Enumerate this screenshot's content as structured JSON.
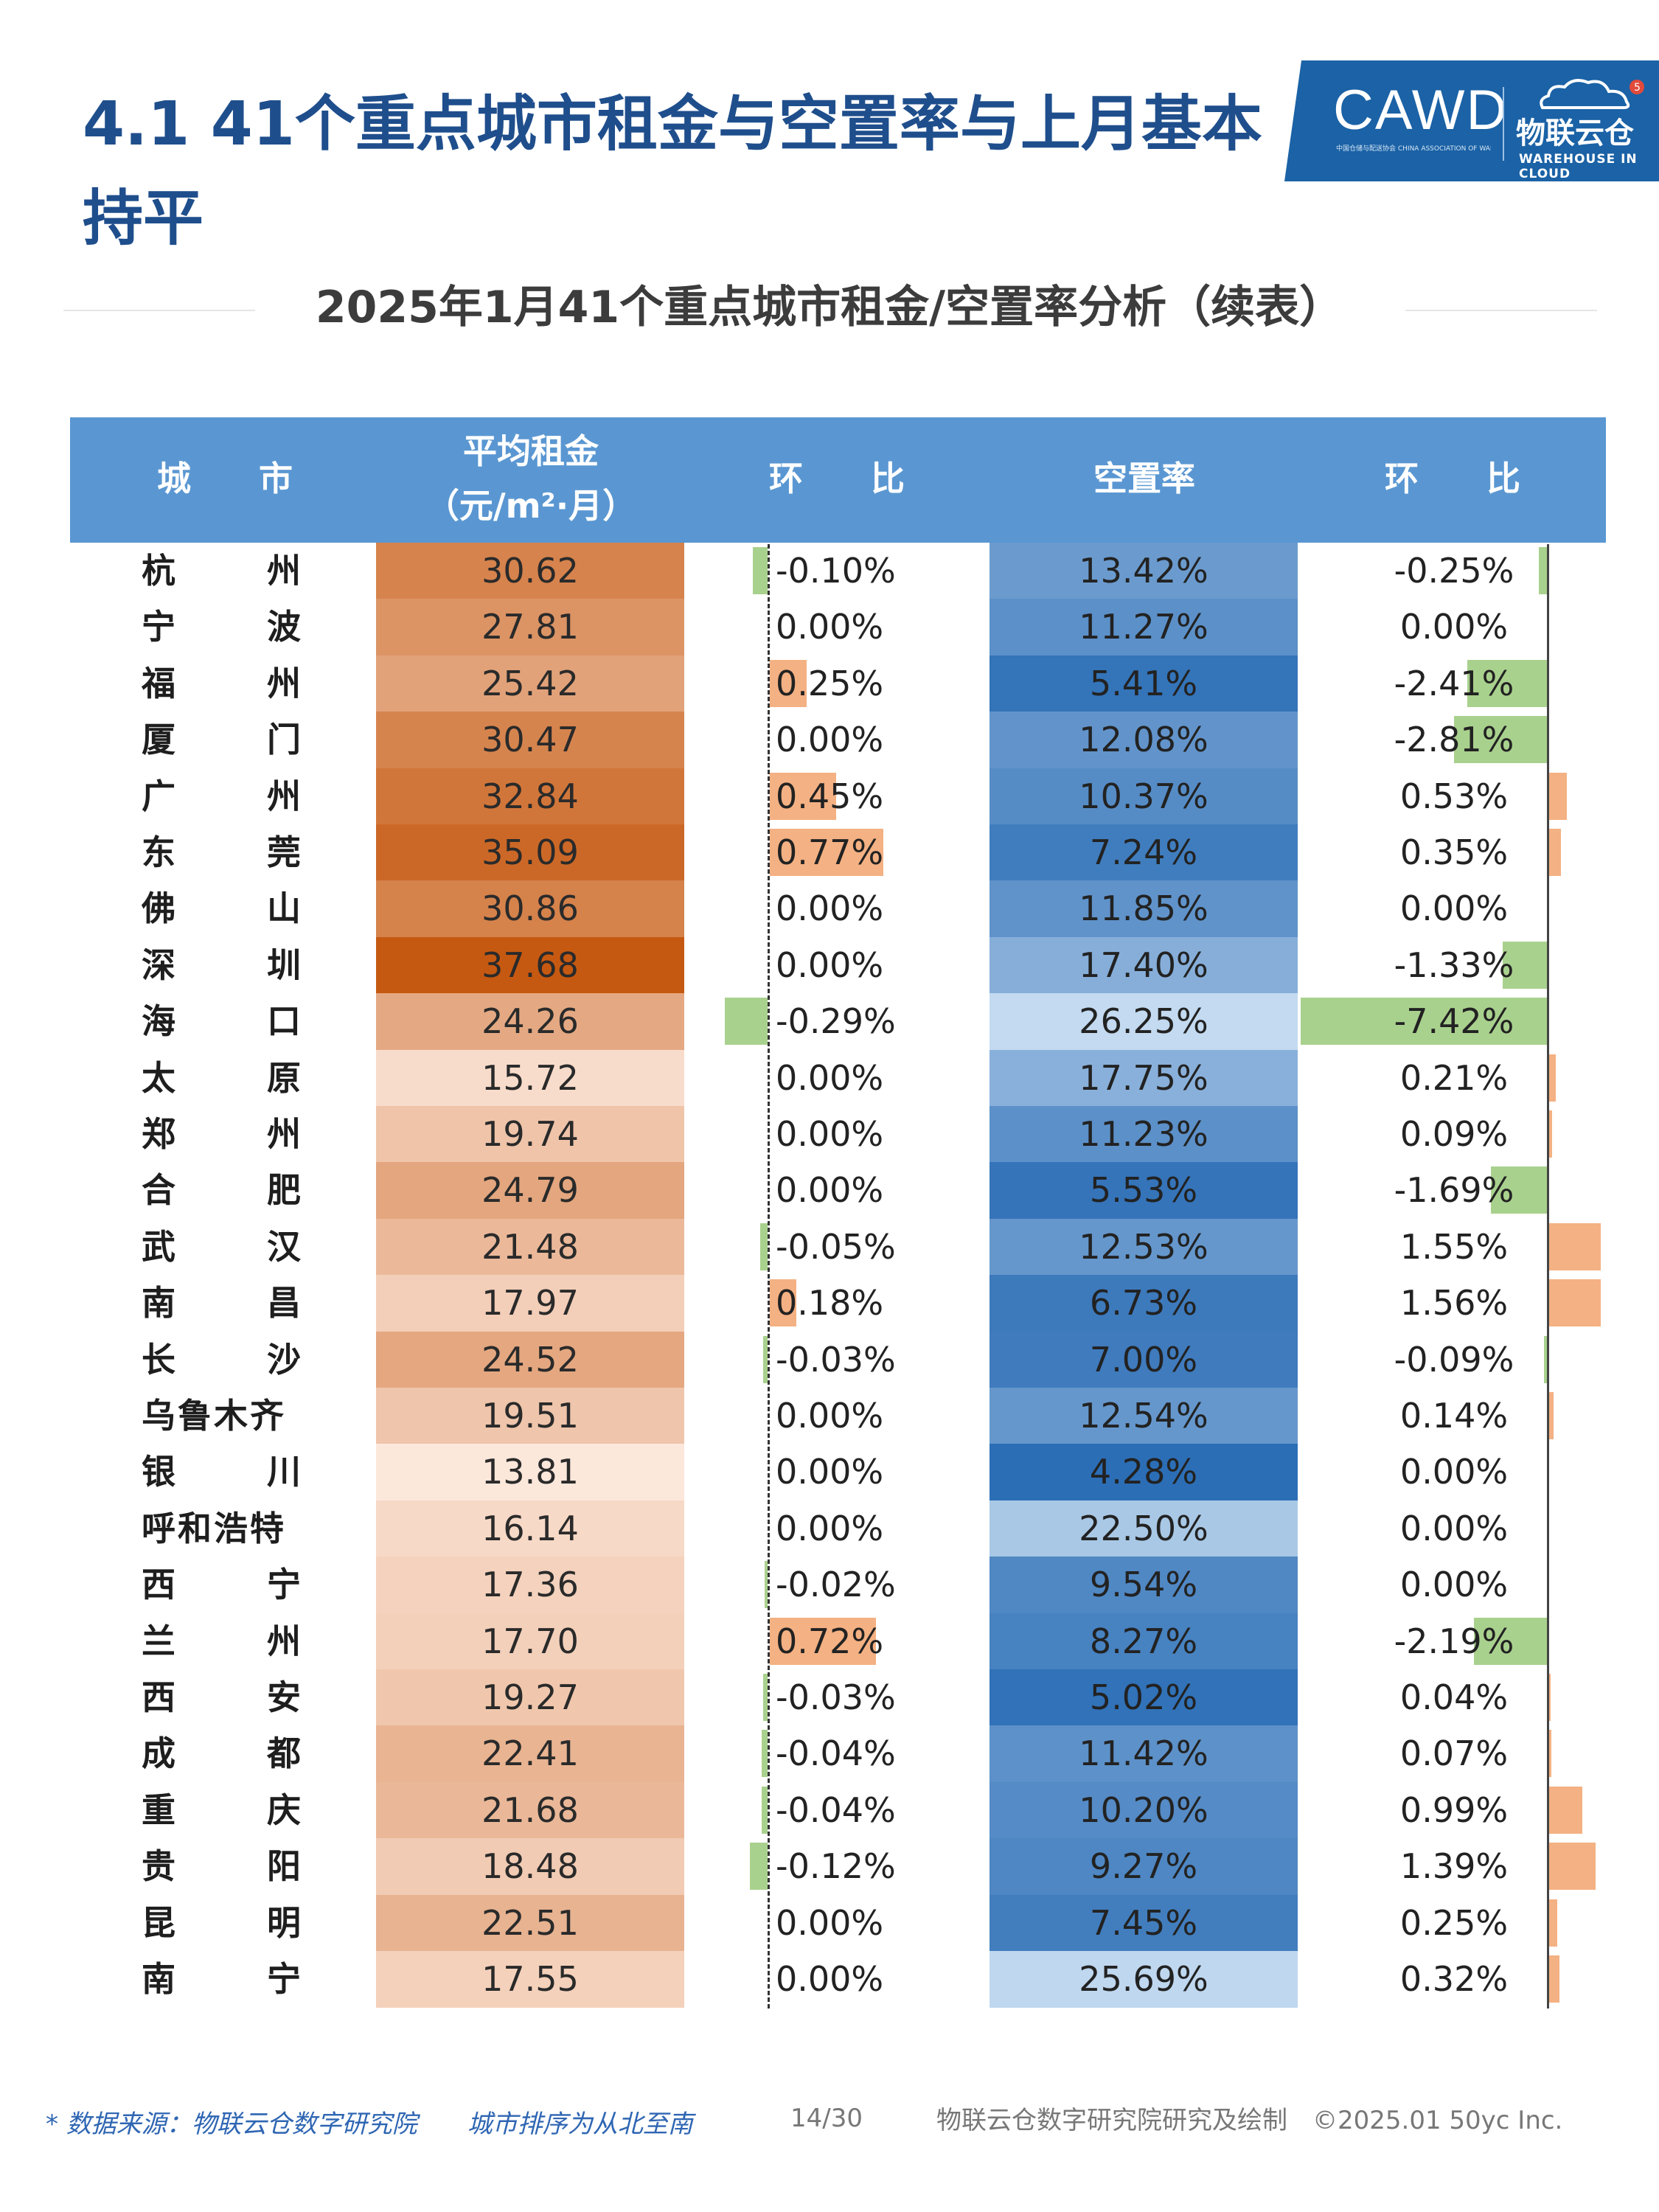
{
  "page_title": "4.1 41个重点城市租金与空置率与上月基本持平",
  "logo": {
    "cawd": "CAWD",
    "cawd_sub": "中国仓储与配送协会 CHINA ASSOCIATION OF WAREHOUSING AND DISTRIBUTION",
    "brand_name": "物联云仓",
    "brand_sub": "WAREHOUSE IN CLOUD",
    "brand_badge": "5"
  },
  "colors": {
    "title_blue": "#1f4e8c",
    "header_blue": "#5a97d2",
    "orange_bar": "#f4b183",
    "green_bar": "#a9d18e",
    "logo_blue": "#1b62a6",
    "footer_blue": "#2f66b3"
  },
  "chart_data": {
    "type": "table",
    "title": "2025年1月41个重点城市租金/空置率分析（续表）",
    "columns": [
      {
        "key": "city",
        "label": "城　　市"
      },
      {
        "key": "rent",
        "label": "平均租金",
        "unit": "（元/m²·月）"
      },
      {
        "key": "rent_mom",
        "label": "环　　比"
      },
      {
        "key": "vacancy",
        "label": "空置率"
      },
      {
        "key": "vacancy_mom",
        "label": "环　　比"
      }
    ],
    "rows": [
      {
        "city": "杭州",
        "rent": 30.62,
        "rent_mom": -0.1,
        "vacancy": 13.42,
        "vacancy_mom": -0.25
      },
      {
        "city": "宁波",
        "rent": 27.81,
        "rent_mom": 0.0,
        "vacancy": 11.27,
        "vacancy_mom": 0.0
      },
      {
        "city": "福州",
        "rent": 25.42,
        "rent_mom": 0.25,
        "vacancy": 5.41,
        "vacancy_mom": -2.41
      },
      {
        "city": "厦门",
        "rent": 30.47,
        "rent_mom": 0.0,
        "vacancy": 12.08,
        "vacancy_mom": -2.81
      },
      {
        "city": "广州",
        "rent": 32.84,
        "rent_mom": 0.45,
        "vacancy": 10.37,
        "vacancy_mom": 0.53
      },
      {
        "city": "东莞",
        "rent": 35.09,
        "rent_mom": 0.77,
        "vacancy": 7.24,
        "vacancy_mom": 0.35
      },
      {
        "city": "佛山",
        "rent": 30.86,
        "rent_mom": 0.0,
        "vacancy": 11.85,
        "vacancy_mom": 0.0
      },
      {
        "city": "深圳",
        "rent": 37.68,
        "rent_mom": 0.0,
        "vacancy": 17.4,
        "vacancy_mom": -1.33
      },
      {
        "city": "海口",
        "rent": 24.26,
        "rent_mom": -0.29,
        "vacancy": 26.25,
        "vacancy_mom": -7.42
      },
      {
        "city": "太原",
        "rent": 15.72,
        "rent_mom": 0.0,
        "vacancy": 17.75,
        "vacancy_mom": 0.21
      },
      {
        "city": "郑州",
        "rent": 19.74,
        "rent_mom": 0.0,
        "vacancy": 11.23,
        "vacancy_mom": 0.09
      },
      {
        "city": "合肥",
        "rent": 24.79,
        "rent_mom": 0.0,
        "vacancy": 5.53,
        "vacancy_mom": -1.69
      },
      {
        "city": "武汉",
        "rent": 21.48,
        "rent_mom": -0.05,
        "vacancy": 12.53,
        "vacancy_mom": 1.55
      },
      {
        "city": "南昌",
        "rent": 17.97,
        "rent_mom": 0.18,
        "vacancy": 6.73,
        "vacancy_mom": 1.56
      },
      {
        "city": "长沙",
        "rent": 24.52,
        "rent_mom": -0.03,
        "vacancy": 7.0,
        "vacancy_mom": -0.09
      },
      {
        "city": "乌鲁木齐",
        "rent": 19.51,
        "rent_mom": 0.0,
        "vacancy": 12.54,
        "vacancy_mom": 0.14
      },
      {
        "city": "银川",
        "rent": 13.81,
        "rent_mom": 0.0,
        "vacancy": 4.28,
        "vacancy_mom": 0.0
      },
      {
        "city": "呼和浩特",
        "rent": 16.14,
        "rent_mom": 0.0,
        "vacancy": 22.5,
        "vacancy_mom": 0.0
      },
      {
        "city": "西宁",
        "rent": 17.36,
        "rent_mom": -0.02,
        "vacancy": 9.54,
        "vacancy_mom": 0.0
      },
      {
        "city": "兰州",
        "rent": 17.7,
        "rent_mom": 0.72,
        "vacancy": 8.27,
        "vacancy_mom": -2.19
      },
      {
        "city": "西安",
        "rent": 19.27,
        "rent_mom": -0.03,
        "vacancy": 5.02,
        "vacancy_mom": 0.04
      },
      {
        "city": "成都",
        "rent": 22.41,
        "rent_mom": -0.04,
        "vacancy": 11.42,
        "vacancy_mom": 0.07
      },
      {
        "city": "重庆",
        "rent": 21.68,
        "rent_mom": -0.04,
        "vacancy": 10.2,
        "vacancy_mom": 0.99
      },
      {
        "city": "贵阳",
        "rent": 18.48,
        "rent_mom": -0.12,
        "vacancy": 9.27,
        "vacancy_mom": 1.39
      },
      {
        "city": "昆明",
        "rent": 22.51,
        "rent_mom": 0.0,
        "vacancy": 7.45,
        "vacancy_mom": 0.25
      },
      {
        "city": "南宁",
        "rent": 17.55,
        "rent_mom": 0.0,
        "vacancy": 25.69,
        "vacancy_mom": 0.32
      }
    ]
  },
  "footer": {
    "source": "* 数据来源：物联云仓数字研究院　　城市排序为从北至南",
    "page": "14/30",
    "credit": "物联云仓数字研究院研究及绘制　©2025.01 50yc Inc."
  }
}
